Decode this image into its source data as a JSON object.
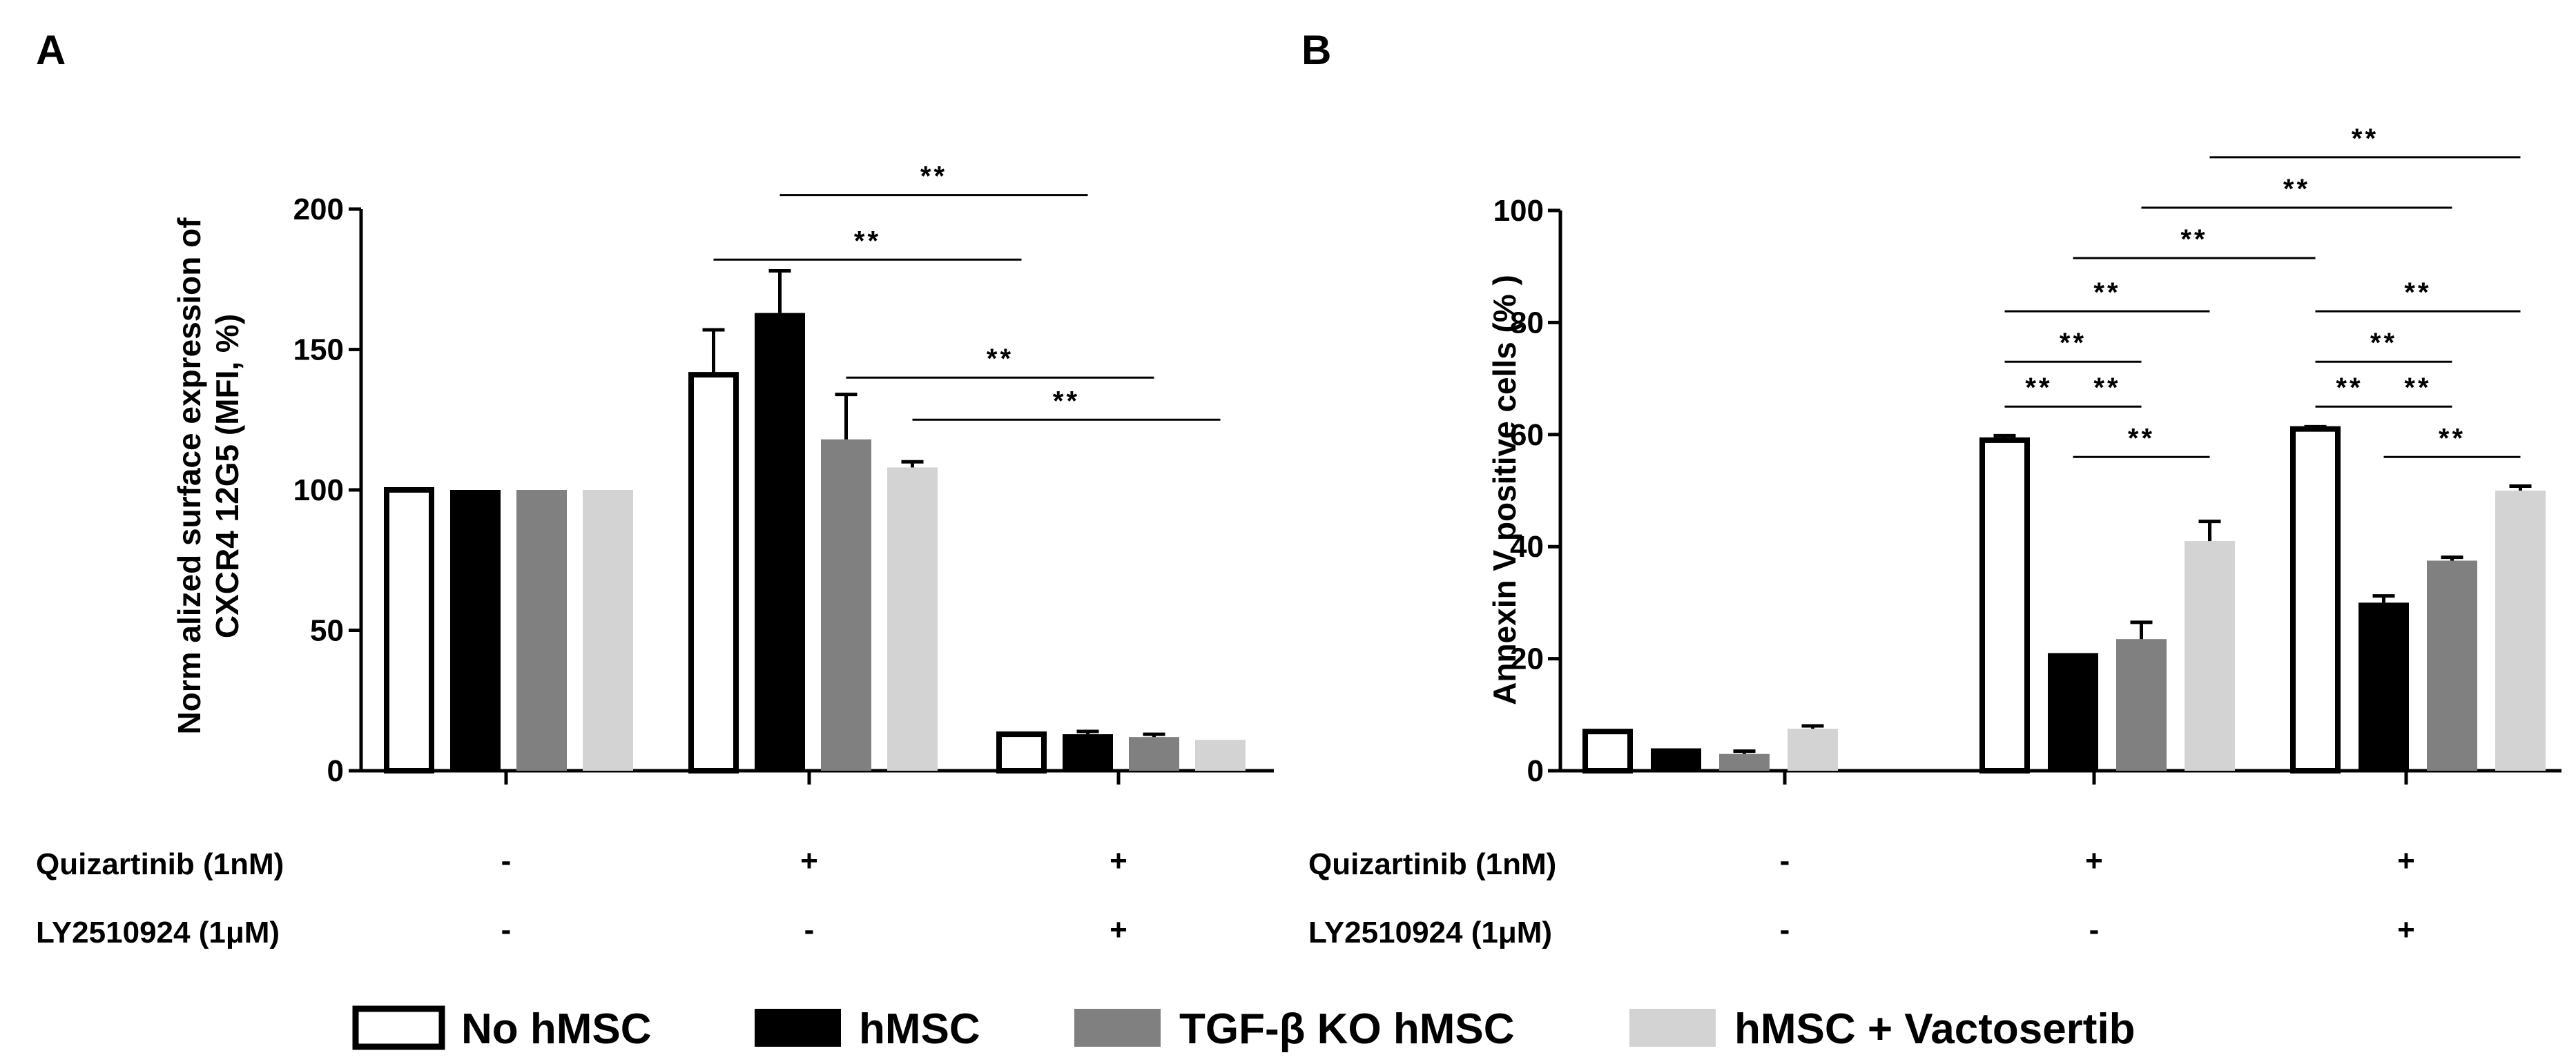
{
  "colors": {
    "no_hmsc": "#ffffff",
    "hmsc": "#000000",
    "tgfb_ko": "#808080",
    "vactosertib": "#d3d3d3"
  },
  "legend": [
    {
      "label": "No hMSC",
      "color": "#ffffff"
    },
    {
      "label": "hMSC",
      "color": "#000000"
    },
    {
      "label": "TGF-β KO hMSC",
      "color": "#808080"
    },
    {
      "label": "hMSC + Vactosertib",
      "color": "#d3d3d3"
    }
  ],
  "conditions": {
    "labels": [
      "Quizartinib (1nM)",
      "LY2510924 (1μM)"
    ],
    "quizartinib": [
      "-",
      "+",
      "+"
    ],
    "ly2510924": [
      "-",
      "-",
      "+"
    ]
  },
  "chart_data": [
    {
      "panel": "A",
      "type": "bar",
      "title": "",
      "xlabel": "",
      "ylabel_line1": "Norm alized surface expression of",
      "ylabel_line2": "CXCR4 12G5 (MFI,  %)",
      "ylim": [
        0,
        200
      ],
      "yticks": [
        "0",
        "50",
        "100",
        "150",
        "200"
      ],
      "groups": [
        "Quizartinib - / LY2510924 -",
        "Quizartinib + / LY2510924 -",
        "Quizartinib + / LY2510924 +"
      ],
      "series": [
        {
          "name": "No hMSC",
          "values": [
            100,
            141,
            13
          ],
          "errors": [
            0,
            16,
            0
          ]
        },
        {
          "name": "hMSC",
          "values": [
            100,
            163,
            13
          ],
          "errors": [
            0,
            15,
            1
          ]
        },
        {
          "name": "TGF-β KO hMSC",
          "values": [
            100,
            118,
            12
          ],
          "errors": [
            0,
            16,
            1
          ]
        },
        {
          "name": "hMSC + Vactosertib",
          "values": [
            100,
            108,
            11
          ],
          "errors": [
            0,
            2,
            0
          ]
        }
      ],
      "significance": [
        {
          "from": [
            1,
            0
          ],
          "to": [
            2,
            0
          ],
          "label": "**",
          "level": 182
        },
        {
          "from": [
            1,
            1
          ],
          "to": [
            2,
            1
          ],
          "label": "**",
          "level": 205
        },
        {
          "from": [
            1,
            2
          ],
          "to": [
            2,
            2
          ],
          "label": "**",
          "level": 140
        },
        {
          "from": [
            1,
            3
          ],
          "to": [
            2,
            3
          ],
          "label": "**",
          "level": 125
        }
      ]
    },
    {
      "panel": "B",
      "type": "bar",
      "title": "",
      "xlabel": "",
      "ylabel": "Annexin V positive cells (% )",
      "ylim": [
        0,
        100
      ],
      "yticks": [
        "0",
        "20",
        "40",
        "60",
        "80",
        "100"
      ],
      "groups": [
        "Quizartinib - / LY2510924 -",
        "Quizartinib + / LY2510924 -",
        "Quizartinib + / LY2510924 +"
      ],
      "series": [
        {
          "name": "No hMSC",
          "values": [
            7,
            59,
            61
          ],
          "errors": [
            0,
            0.8,
            0.4
          ]
        },
        {
          "name": "hMSC",
          "values": [
            4,
            21,
            30
          ],
          "errors": [
            0,
            0,
            1.2
          ]
        },
        {
          "name": "TGF-β KO hMSC",
          "values": [
            3,
            23.5,
            37.5
          ],
          "errors": [
            0.5,
            3,
            0.6
          ]
        },
        {
          "name": "hMSC + Vactosertib",
          "values": [
            7.5,
            41,
            50
          ],
          "errors": [
            0.5,
            3.5,
            0.8
          ]
        }
      ],
      "significance": [
        {
          "from": [
            1,
            0
          ],
          "to": [
            1,
            1
          ],
          "label": "**",
          "level": 65
        },
        {
          "from": [
            1,
            1
          ],
          "to": [
            1,
            2
          ],
          "label": "**",
          "level": 65
        },
        {
          "from": [
            1,
            0
          ],
          "to": [
            1,
            2
          ],
          "label": "**",
          "level": 73
        },
        {
          "from": [
            1,
            0
          ],
          "to": [
            1,
            3
          ],
          "label": "**",
          "level": 82
        },
        {
          "from": [
            1,
            1
          ],
          "to": [
            1,
            3
          ],
          "label": "**",
          "level": 56
        },
        {
          "from": [
            1,
            1
          ],
          "to": [
            2,
            0
          ],
          "label": "**",
          "level": 91.5
        },
        {
          "from": [
            1,
            2
          ],
          "to": [
            2,
            2
          ],
          "label": "**",
          "level": 100.5
        },
        {
          "from": [
            1,
            3
          ],
          "to": [
            2,
            3
          ],
          "label": "**",
          "level": 109.5
        },
        {
          "from": [
            2,
            0
          ],
          "to": [
            2,
            1
          ],
          "label": "**",
          "level": 65
        },
        {
          "from": [
            2,
            1
          ],
          "to": [
            2,
            2
          ],
          "label": "**",
          "level": 65
        },
        {
          "from": [
            2,
            0
          ],
          "to": [
            2,
            2
          ],
          "label": "**",
          "level": 73
        },
        {
          "from": [
            2,
            0
          ],
          "to": [
            2,
            3
          ],
          "label": "**",
          "level": 82
        },
        {
          "from": [
            2,
            1
          ],
          "to": [
            2,
            3
          ],
          "label": "**",
          "level": 56
        }
      ]
    }
  ]
}
